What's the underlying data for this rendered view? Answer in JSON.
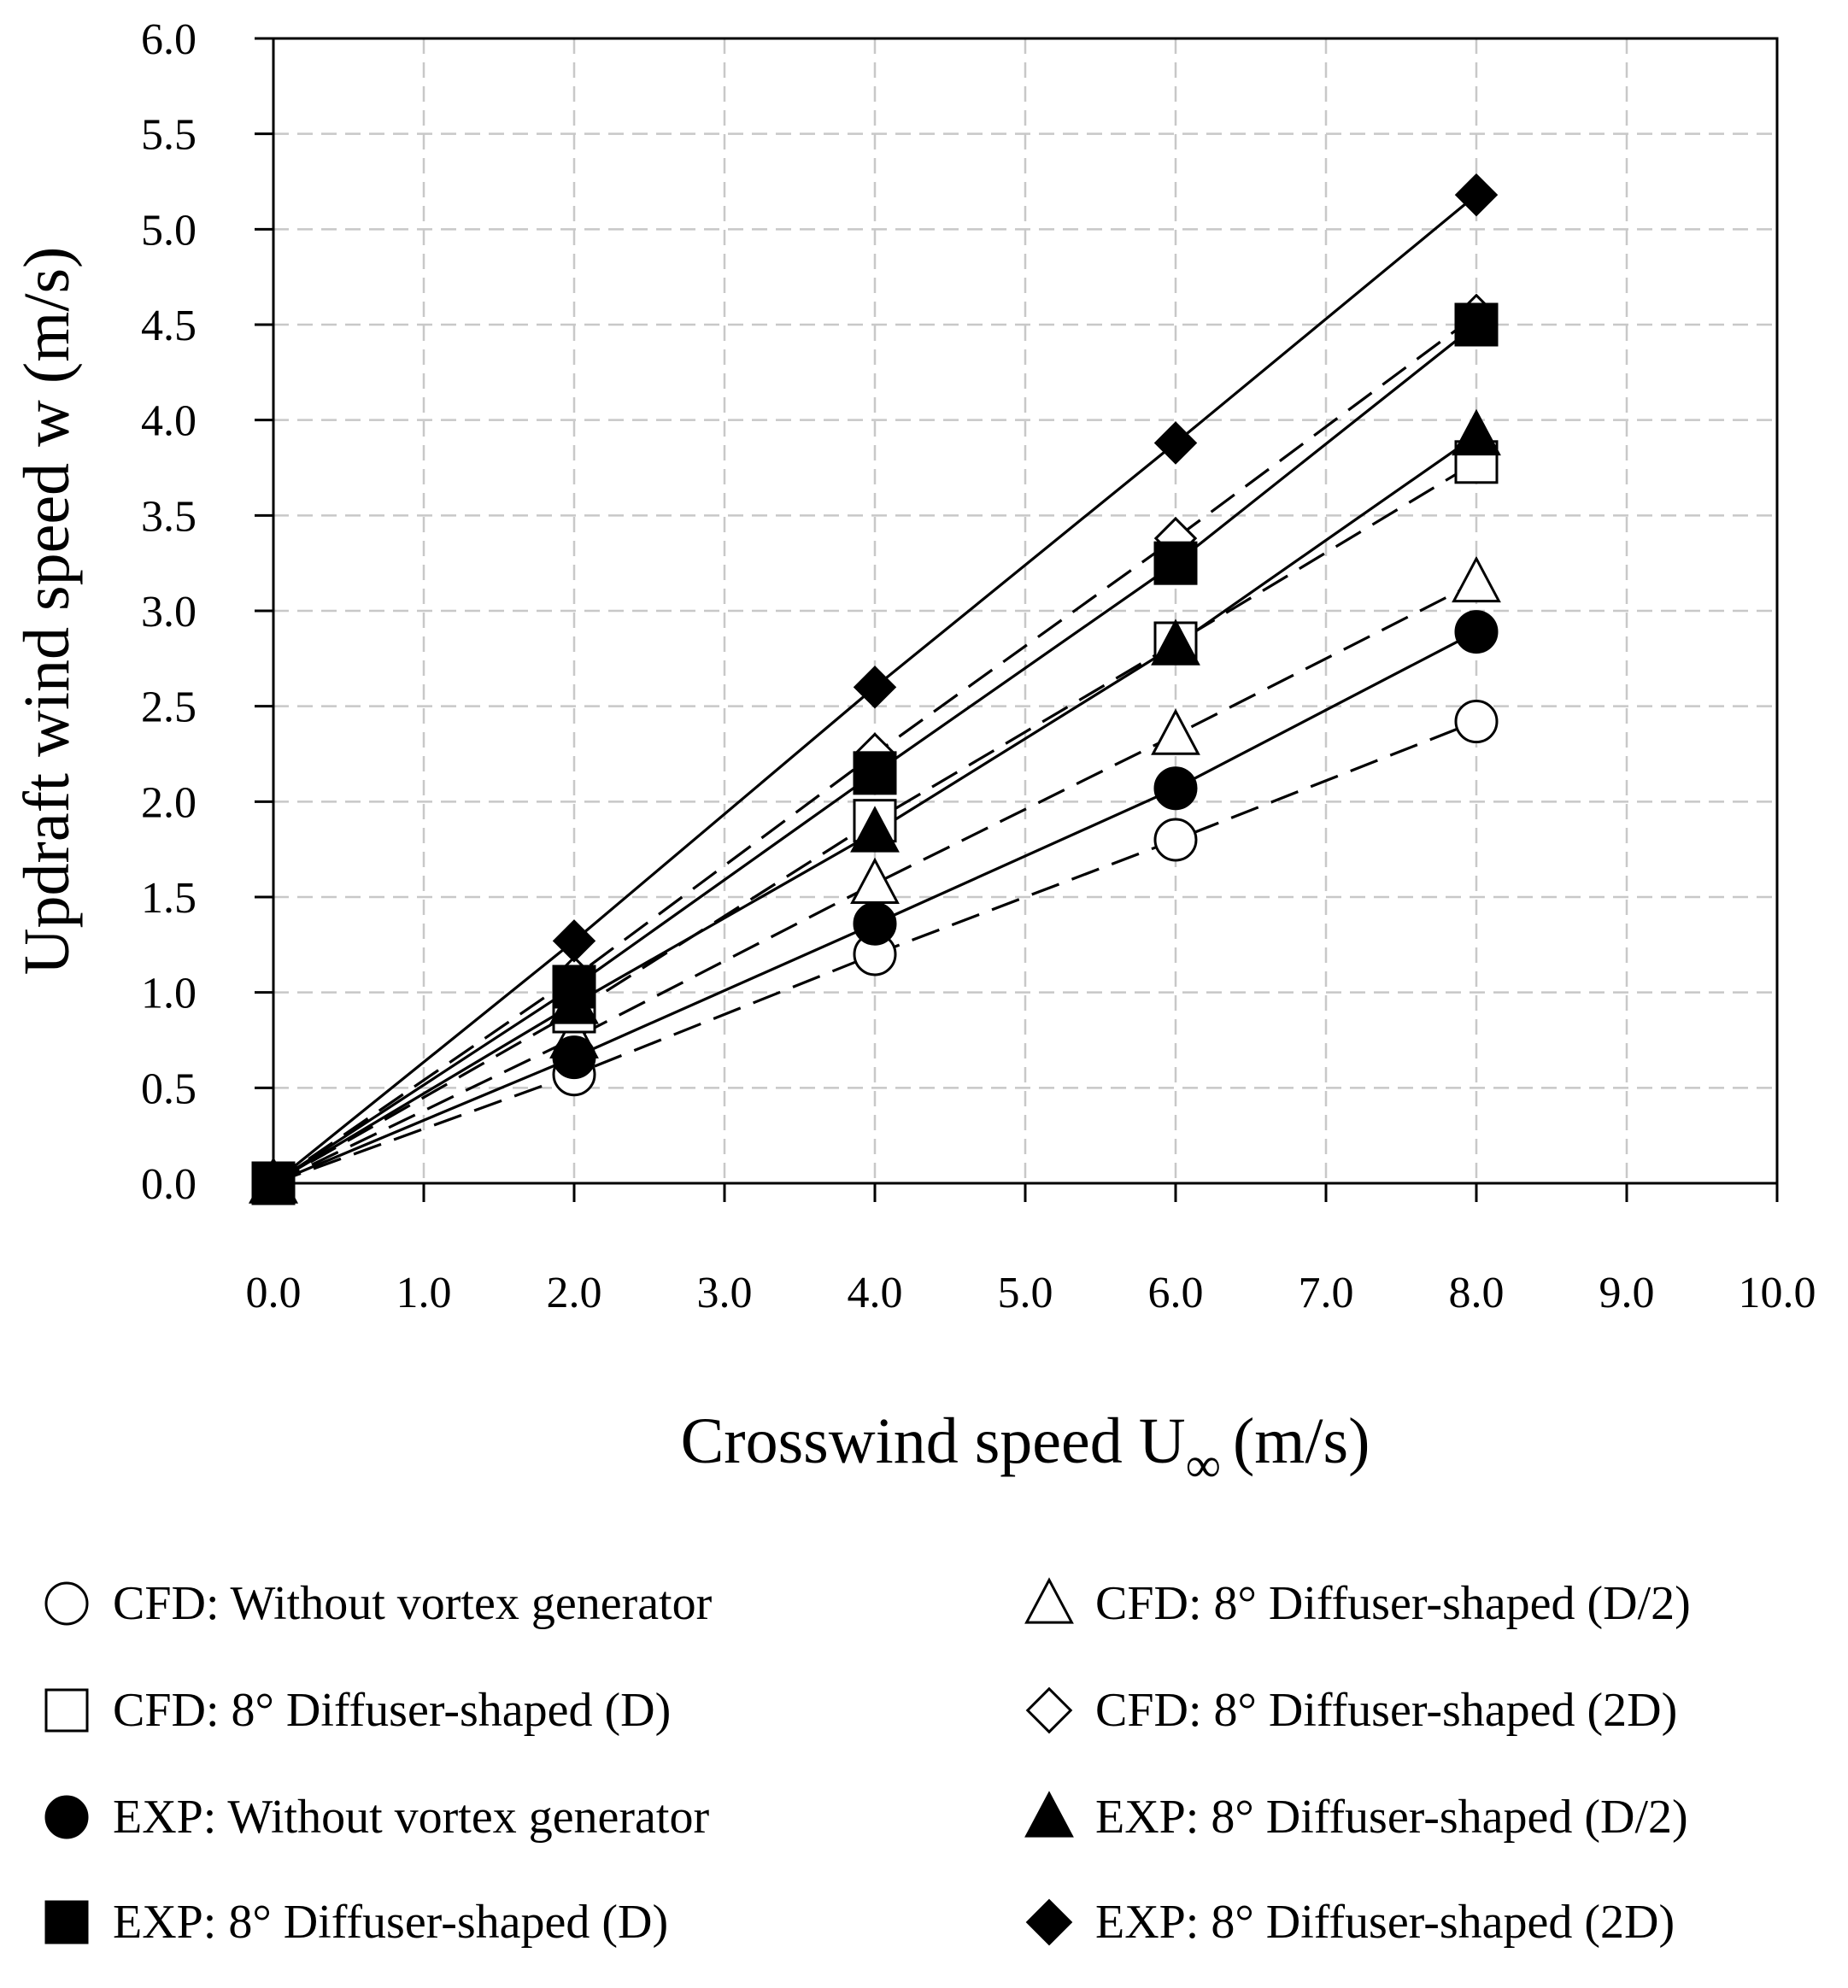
{
  "chart_data": {
    "type": "scatter",
    "title": "",
    "xlabel": "Crosswind speed U",
    "xlabel_subscript": "∞",
    "xlabel_unit": "(m/s)",
    "ylabel": "Updraft wind speed w (m/s)",
    "xlim": [
      0,
      10
    ],
    "ylim": [
      0,
      6
    ],
    "grid": true,
    "x_tick_labels": [
      "0.0",
      "1.0",
      "2.0",
      "3.0",
      "4.0",
      "5.0",
      "6.0",
      "7.0",
      "8.0",
      "9.0",
      "10.0"
    ],
    "y_tick_labels": [
      "0.0",
      "0.5",
      "1.0",
      "1.5",
      "2.0",
      "2.5",
      "3.0",
      "3.5",
      "4.0",
      "4.5",
      "5.0",
      "5.5",
      "6.0"
    ],
    "legend_position": "bottom",
    "series": [
      {
        "name": "CFD: Without vortex generator",
        "marker": "circle",
        "filled": false,
        "line": "dashed",
        "x": [
          0,
          2,
          4,
          6,
          8
        ],
        "y": [
          0,
          0.57,
          1.2,
          1.8,
          2.42
        ]
      },
      {
        "name": "CFD: 8° Diffuser-shaped (D/2)",
        "marker": "triangle",
        "filled": false,
        "line": "dashed",
        "x": [
          0,
          2,
          4,
          6,
          8
        ],
        "y": [
          0,
          0.76,
          1.57,
          2.35,
          3.15
        ]
      },
      {
        "name": "CFD: 8° Diffuser-shaped (D)",
        "marker": "square",
        "filled": false,
        "line": "dashed",
        "x": [
          0,
          2,
          4,
          6,
          8
        ],
        "y": [
          0,
          0.9,
          1.9,
          2.83,
          3.78
        ]
      },
      {
        "name": "CFD: 8° Diffuser-shaped (2D)",
        "marker": "diamond",
        "filled": false,
        "line": "dashed",
        "x": [
          0,
          2,
          4,
          6,
          8
        ],
        "y": [
          0,
          1.08,
          2.25,
          3.38,
          4.55
        ]
      },
      {
        "name": "EXP: Without vortex generator",
        "marker": "circle",
        "filled": true,
        "line": "solid",
        "x": [
          0,
          2,
          4,
          6,
          8
        ],
        "y": [
          0,
          0.66,
          1.36,
          2.07,
          2.89
        ]
      },
      {
        "name": "EXP: 8° Diffuser-shaped (D/2)",
        "marker": "triangle",
        "filled": true,
        "line": "solid",
        "x": [
          0,
          2,
          4,
          6,
          8
        ],
        "y": [
          0,
          0.94,
          1.84,
          2.82,
          3.92
        ]
      },
      {
        "name": "EXP: 8° Diffuser-shaped (D)",
        "marker": "square",
        "filled": true,
        "line": "solid",
        "x": [
          0,
          2,
          4,
          6,
          8
        ],
        "y": [
          0,
          1.03,
          2.15,
          3.25,
          4.5
        ]
      },
      {
        "name": "EXP: 8° Diffuser-shaped (2D)",
        "marker": "diamond",
        "filled": true,
        "line": "solid",
        "x": [
          0,
          2,
          4,
          6,
          8
        ],
        "y": [
          0,
          1.27,
          2.6,
          3.88,
          5.18
        ]
      }
    ],
    "legend_order": [
      0,
      1,
      2,
      3,
      4,
      5,
      6,
      7
    ]
  }
}
